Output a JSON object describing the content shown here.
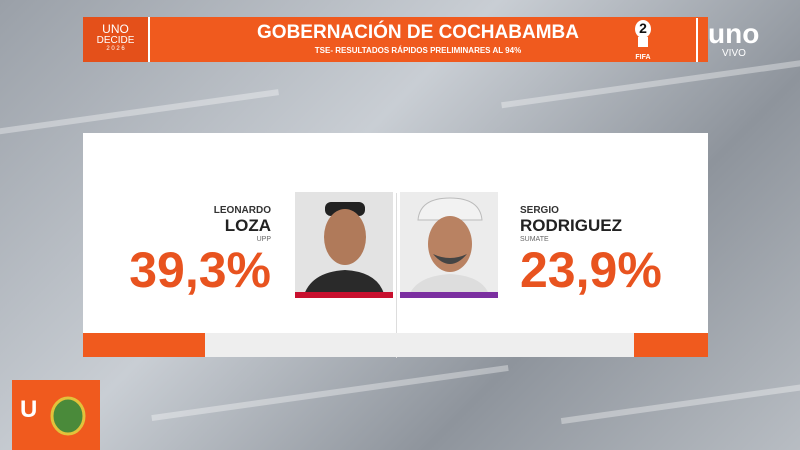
{
  "header": {
    "brand_top": "UNO",
    "brand_middle": "DECIDE",
    "brand_year": "2 0 2 6",
    "title": "GOBERNACIÓN DE COCHABAMBA",
    "subtitle": "TSE- RESULTADOS RÁPIDOS PRELIMINARES AL 94%",
    "badge": "FIFA",
    "channel": "uno",
    "channel_sub": "VIVO"
  },
  "candidates": [
    {
      "first_name": "LEONARDO",
      "last_name": "LOZA",
      "party": "UPP",
      "percent": 39.3,
      "percent_label": "39,3%",
      "color": "#c8102e"
    },
    {
      "first_name": "SERGIO",
      "last_name": "RODRIGUEZ",
      "party": "SUMATE",
      "percent": 23.9,
      "percent_label": "23,9%",
      "color": "#7b2fa0"
    }
  ],
  "corner_logo": "U"
}
